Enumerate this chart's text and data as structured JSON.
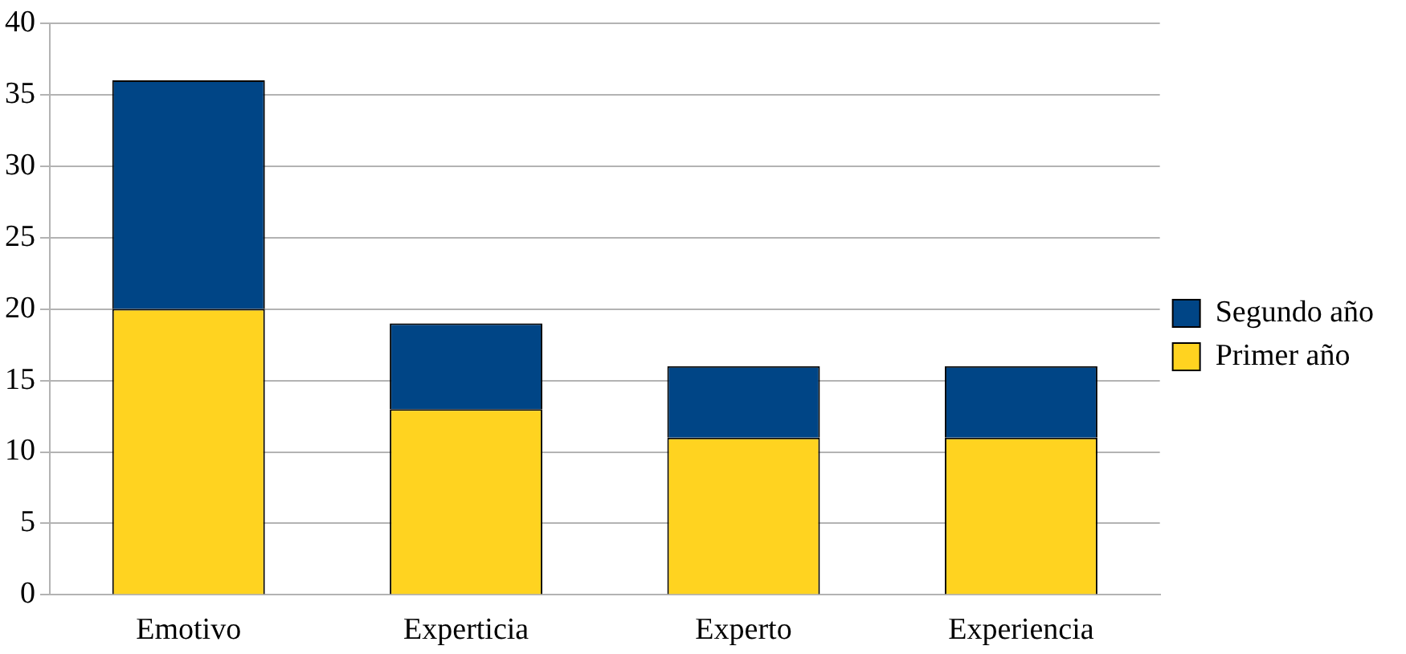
{
  "chart_data": {
    "type": "bar",
    "stacked": true,
    "categories": [
      "Emotivo",
      "Experticia",
      "Experto",
      "Experiencia"
    ],
    "series": [
      {
        "name": "Primer año",
        "color": "#ffd320",
        "values": [
          20,
          13,
          11,
          11
        ]
      },
      {
        "name": "Segundo año",
        "color": "#004586",
        "values": [
          16,
          6,
          5,
          5
        ]
      }
    ],
    "ylim": [
      0,
      40
    ],
    "yticks": [
      0,
      5,
      10,
      15,
      20,
      25,
      30,
      35,
      40
    ],
    "grid": "y",
    "legend": "right"
  }
}
